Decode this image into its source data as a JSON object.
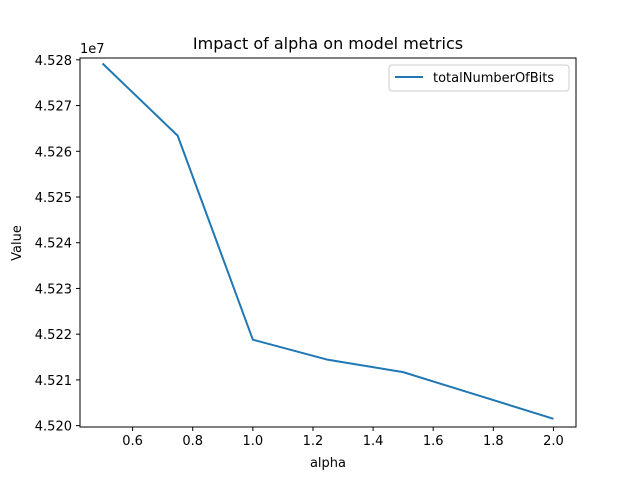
{
  "chart_data": {
    "type": "line",
    "title": "Impact of alpha on model metrics",
    "xlabel": "alpha",
    "ylabel": "Value",
    "offset_label": "1e7",
    "xlim": [
      0.425,
      2.075
    ],
    "ylim": [
      45199700,
      45280400
    ],
    "x_ticks": [
      0.6,
      0.8,
      1.0,
      1.2,
      1.4,
      1.6,
      1.8,
      2.0
    ],
    "x_tick_labels": [
      "0.6",
      "0.8",
      "1.0",
      "1.2",
      "1.4",
      "1.6",
      "1.8",
      "2.0"
    ],
    "y_ticks": [
      45200000,
      45210000,
      45220000,
      45230000,
      45240000,
      45250000,
      45260000,
      45270000,
      45280000
    ],
    "y_tick_labels": [
      "4.520",
      "4.521",
      "4.522",
      "4.523",
      "4.524",
      "4.525",
      "4.526",
      "4.527",
      "4.528"
    ],
    "grid": false,
    "legend_position": "top-right",
    "series": [
      {
        "name": "totalNumberOfBits",
        "color": "#1f77b4",
        "x": [
          0.5,
          0.75,
          1.0,
          1.25,
          1.5,
          1.75,
          2.0
        ],
        "y": [
          45279200,
          45263400,
          45218800,
          45214400,
          45211700,
          45206600,
          45201500
        ]
      }
    ]
  }
}
